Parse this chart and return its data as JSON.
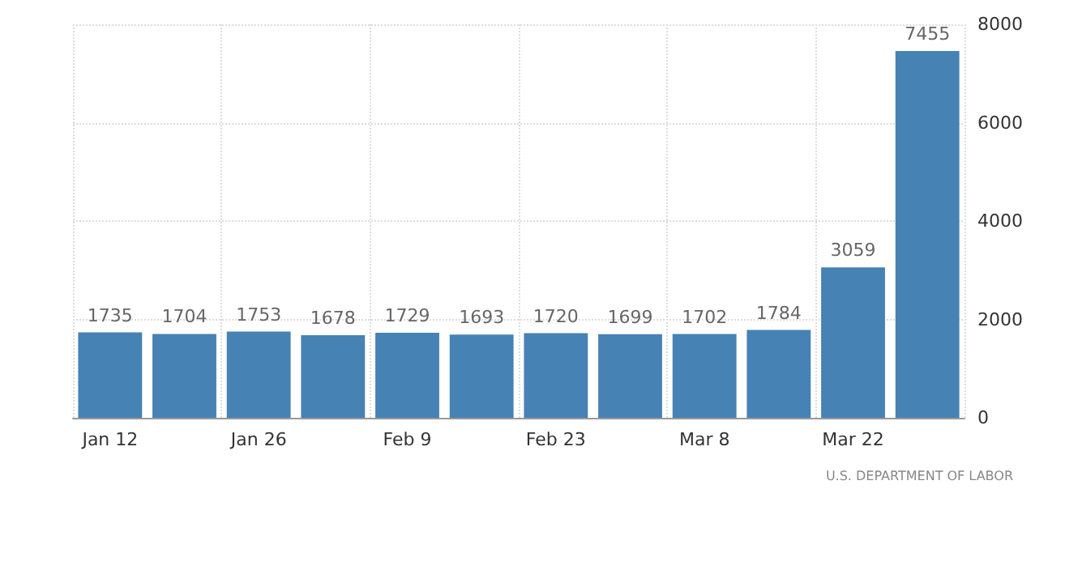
{
  "chart_data": {
    "type": "bar",
    "categories": [
      "Jan 12",
      null,
      "Jan 26",
      null,
      "Feb 9",
      null,
      "Feb 23",
      null,
      "Mar 8",
      null,
      "Mar 22",
      null
    ],
    "values": [
      1735,
      1704,
      1753,
      1678,
      1729,
      1693,
      1720,
      1699,
      1702,
      1784,
      3059,
      7455
    ],
    "color": "#4682b4",
    "data_labels": true,
    "ylim": [
      0,
      8000
    ],
    "yticks": [
      0,
      2000,
      4000,
      6000,
      8000
    ],
    "grid": true,
    "annotations": [
      "U.S. DEPARTMENT OF LABOR"
    ]
  }
}
